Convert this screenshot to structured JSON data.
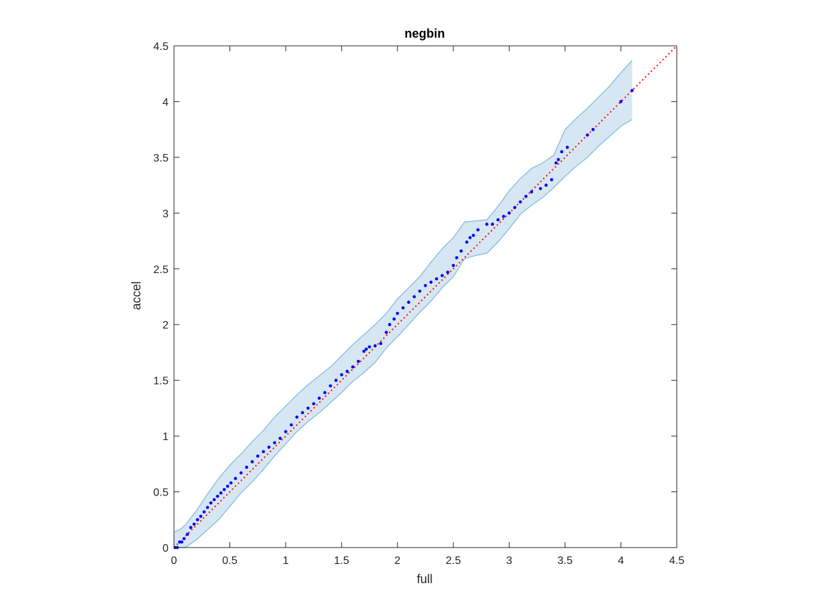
{
  "chart_data": {
    "type": "scatter",
    "title": "negbin",
    "xlabel": "full",
    "ylabel": "accel",
    "xlim": [
      0,
      4.5
    ],
    "ylim": [
      0,
      4.5
    ],
    "xticks": [
      "0",
      "0.5",
      "1",
      "1.5",
      "2",
      "2.5",
      "3",
      "3.5",
      "4",
      "4.5"
    ],
    "yticks": [
      "0",
      "0.5",
      "1",
      "1.5",
      "2",
      "2.5",
      "3",
      "3.5",
      "4",
      "4.5"
    ],
    "grid": false,
    "colors": {
      "points": "#0000ff",
      "reference_line": "#ff0000",
      "band_fill": "#d6e7f3",
      "band_edge": "#8fc1e0",
      "axes": "#262626"
    },
    "reference_line": {
      "x": [
        0,
        4.5
      ],
      "y": [
        0,
        4.5
      ],
      "style": "dotted"
    },
    "band": {
      "x": [
        0.0,
        0.05,
        0.1,
        0.2,
        0.3,
        0.4,
        0.5,
        0.6,
        0.7,
        0.8,
        0.9,
        1.0,
        1.1,
        1.2,
        1.3,
        1.4,
        1.5,
        1.6,
        1.7,
        1.8,
        1.9,
        2.0,
        2.1,
        2.2,
        2.3,
        2.4,
        2.5,
        2.6,
        2.7,
        2.8,
        2.9,
        3.0,
        3.1,
        3.2,
        3.3,
        3.4,
        3.5,
        3.6,
        3.7,
        3.8,
        3.9,
        4.0,
        4.1
      ],
      "upper": [
        0.14,
        0.16,
        0.2,
        0.33,
        0.48,
        0.62,
        0.74,
        0.84,
        0.95,
        1.05,
        1.17,
        1.27,
        1.37,
        1.46,
        1.54,
        1.62,
        1.72,
        1.82,
        1.91,
        2.0,
        2.1,
        2.23,
        2.33,
        2.43,
        2.56,
        2.68,
        2.78,
        2.92,
        2.93,
        2.94,
        3.06,
        3.2,
        3.31,
        3.4,
        3.45,
        3.52,
        3.75,
        3.85,
        3.94,
        4.04,
        4.14,
        4.26,
        4.37
      ],
      "lower": [
        0.0,
        0.0,
        0.0,
        0.07,
        0.16,
        0.25,
        0.37,
        0.49,
        0.59,
        0.7,
        0.82,
        0.93,
        1.04,
        1.13,
        1.21,
        1.3,
        1.39,
        1.49,
        1.57,
        1.66,
        1.79,
        1.89,
        2.0,
        2.11,
        2.21,
        2.33,
        2.43,
        2.59,
        2.62,
        2.64,
        2.74,
        2.86,
        2.99,
        3.07,
        3.14,
        3.23,
        3.33,
        3.42,
        3.5,
        3.6,
        3.69,
        3.78,
        3.84
      ]
    },
    "series": [
      {
        "x": [
          0.01,
          0.03,
          0.05,
          0.07,
          0.09,
          0.12,
          0.15,
          0.18,
          0.21,
          0.24,
          0.27,
          0.3,
          0.33,
          0.36,
          0.39,
          0.42,
          0.45,
          0.48,
          0.51,
          0.55,
          0.6,
          0.65,
          0.7,
          0.75,
          0.8,
          0.85,
          0.9,
          0.95,
          1.0,
          1.05,
          1.1,
          1.15,
          1.2,
          1.25,
          1.3,
          1.35,
          1.4,
          1.45,
          1.5,
          1.55,
          1.6,
          1.65,
          1.7,
          1.72,
          1.75,
          1.8,
          1.85,
          1.9,
          1.93,
          1.97,
          2.0,
          2.05,
          2.1,
          2.15,
          2.2,
          2.25,
          2.3,
          2.35,
          2.4,
          2.45,
          2.5,
          2.53,
          2.57,
          2.62,
          2.65,
          2.68,
          2.72,
          2.8,
          2.85,
          2.9,
          2.95,
          3.0,
          3.05,
          3.1,
          3.15,
          3.2,
          3.28,
          3.33,
          3.38,
          3.42,
          3.44,
          3.47,
          3.52,
          3.7,
          3.75,
          4.0,
          4.1
        ],
        "y": [
          0.0,
          0.0,
          0.05,
          0.05,
          0.08,
          0.12,
          0.18,
          0.21,
          0.25,
          0.28,
          0.32,
          0.36,
          0.4,
          0.43,
          0.46,
          0.49,
          0.52,
          0.55,
          0.58,
          0.62,
          0.67,
          0.72,
          0.77,
          0.82,
          0.86,
          0.9,
          0.94,
          0.98,
          1.04,
          1.1,
          1.17,
          1.21,
          1.25,
          1.29,
          1.34,
          1.39,
          1.45,
          1.5,
          1.55,
          1.58,
          1.62,
          1.67,
          1.76,
          1.78,
          1.8,
          1.81,
          1.83,
          1.93,
          2.0,
          2.05,
          2.1,
          2.15,
          2.2,
          2.25,
          2.3,
          2.35,
          2.38,
          2.41,
          2.44,
          2.47,
          2.53,
          2.6,
          2.66,
          2.74,
          2.78,
          2.8,
          2.85,
          2.9,
          2.9,
          2.94,
          2.97,
          3.0,
          3.05,
          3.1,
          3.15,
          3.19,
          3.22,
          3.25,
          3.3,
          3.45,
          3.48,
          3.55,
          3.59,
          3.7,
          3.75,
          4.0,
          4.1
        ]
      }
    ]
  }
}
